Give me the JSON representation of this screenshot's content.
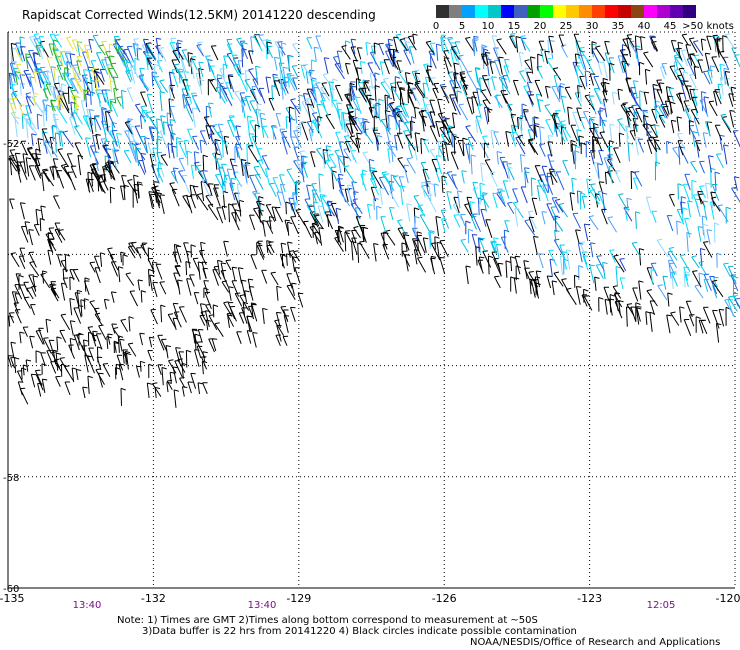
{
  "title": "Rapidscat Corrected Winds(12.5KM) 20141220 descending",
  "legend": {
    "colors": [
      "#303030",
      "#7f7f7f",
      "#00a0ff",
      "#00ffff",
      "#00c8c8",
      "#0000ff",
      "#4060c0",
      "#00a000",
      "#00ff00",
      "#ffff00",
      "#ffc800",
      "#ff8c00",
      "#ff4000",
      "#ff0000",
      "#c80000",
      "#8b4513",
      "#ff00ff",
      "#b000d0",
      "#6000b0",
      "#300080"
    ],
    "labels": [
      "0",
      "5",
      "10",
      "15",
      "20",
      "25",
      "30",
      "35",
      "40",
      "45",
      ">50 knots"
    ]
  },
  "map": {
    "lon_range": [
      -135,
      -120
    ],
    "lat_range": [
      -60,
      -50
    ],
    "lon_ticks": [
      "-135",
      "-132",
      "-129",
      "-126",
      "-123",
      "-120"
    ],
    "lat_ticks": [
      "-50",
      "-52",
      "-54",
      "-56",
      "-58",
      "-60"
    ],
    "lat_labels_visible": [
      "-52",
      "-58",
      "-60"
    ],
    "gridlines": true
  },
  "times": [
    "13:40",
    "13:40",
    "12:05"
  ],
  "notes": {
    "line1": "Note: 1) Times are GMT 2)Times along bottom correspond to measurement at ~50S",
    "line2": "3)Data buffer is 22 hrs from 20141220 4) Black circles indicate possible contamination",
    "credit": "NOAA/NESDIS/Office of Research and Applications"
  }
}
